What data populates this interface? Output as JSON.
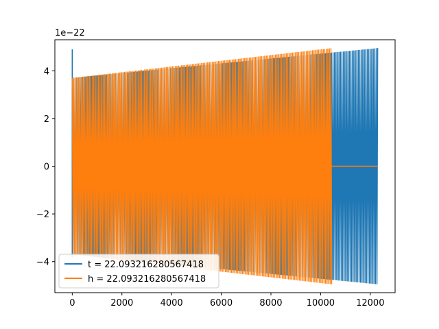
{
  "chart_data": {
    "type": "line",
    "y_scale_label": "1e−22",
    "xlim": [
      -700,
      13000
    ],
    "ylim": [
      -5.3,
      5.3
    ],
    "x_ticks": [
      0,
      2000,
      4000,
      6000,
      8000,
      10000,
      12000
    ],
    "x_tick_labels": [
      "0",
      "2000",
      "4000",
      "6000",
      "8000",
      "10000",
      "12000"
    ],
    "y_ticks": [
      -4,
      -2,
      0,
      2,
      4
    ],
    "y_tick_labels": [
      "−4",
      "−2",
      "0",
      "2",
      "4"
    ],
    "legend_position": "lower-left",
    "series": [
      {
        "name": "t = 22.093216280567418",
        "color": "#1f77b4",
        "x_range": [
          0,
          12300
        ],
        "amplitude_start": 3.7,
        "amplitude_end": 4.95,
        "initial_spike": 4.9
      },
      {
        "name": "h = 22.093216280567418",
        "color": "#ff7f0e",
        "x_range": [
          0,
          10450
        ],
        "amplitude_start": 3.7,
        "amplitude_end": 4.95,
        "flat_after": 10450
      }
    ]
  }
}
